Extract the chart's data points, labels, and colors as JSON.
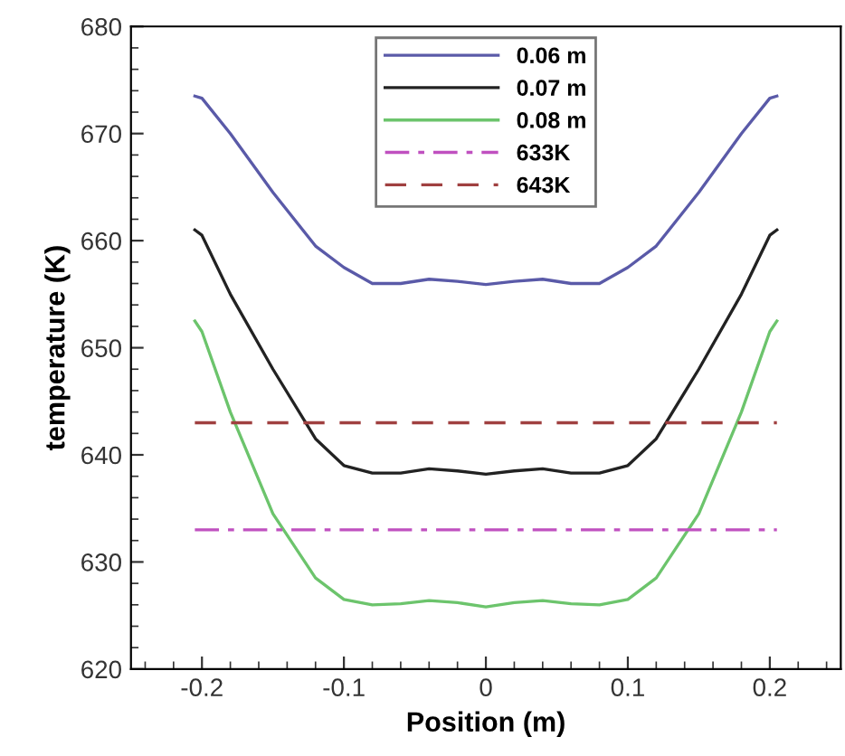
{
  "chart_data": {
    "type": "line",
    "xlabel": "Position (m)",
    "ylabel": "temperature (K)",
    "xlim": [
      -0.25,
      0.25
    ],
    "ylim": [
      620,
      680
    ],
    "xticks": [
      -0.2,
      -0.1,
      0,
      0.1,
      0.2
    ],
    "yticks": [
      620,
      630,
      640,
      650,
      660,
      670,
      680
    ],
    "legend": "top",
    "grid": false,
    "x": [
      -0.205,
      -0.2,
      -0.18,
      -0.15,
      -0.12,
      -0.1,
      -0.08,
      -0.06,
      -0.04,
      -0.02,
      0,
      0.02,
      0.04,
      0.06,
      0.08,
      0.1,
      0.12,
      0.15,
      0.18,
      0.2,
      0.205
    ],
    "series": [
      {
        "name": "0.06 m",
        "color": "#5a5aa8",
        "line_style": "solid",
        "values": [
          673.5,
          673.3,
          670,
          664.5,
          659.5,
          657.5,
          656,
          656,
          656.4,
          656.2,
          655.9,
          656.2,
          656.4,
          656,
          656,
          657.5,
          659.5,
          664.5,
          670,
          673.3,
          673.5
        ]
      },
      {
        "name": "0.07 m",
        "color": "#222222",
        "line_style": "solid",
        "values": [
          661,
          660.5,
          655,
          648,
          641.5,
          639,
          638.3,
          638.3,
          638.7,
          638.5,
          638.2,
          638.5,
          638.7,
          638.3,
          638.3,
          639,
          641.5,
          648,
          655,
          660.5,
          661
        ]
      },
      {
        "name": "0.08 m",
        "color": "#6cc46c",
        "line_style": "solid",
        "values": [
          652.5,
          651.5,
          644,
          634.5,
          628.5,
          626.5,
          626,
          626.1,
          626.4,
          626.2,
          625.8,
          626.2,
          626.4,
          626.1,
          626,
          626.5,
          628.5,
          634.5,
          644,
          651.5,
          652.5
        ]
      }
    ],
    "ref_lines": [
      {
        "axis": "y",
        "value": 633,
        "label": "633K",
        "color": "#c050c0",
        "line_style": "dashdot"
      },
      {
        "axis": "y",
        "value": 643,
        "label": "643K",
        "color": "#a04040",
        "line_style": "dashed"
      }
    ]
  }
}
